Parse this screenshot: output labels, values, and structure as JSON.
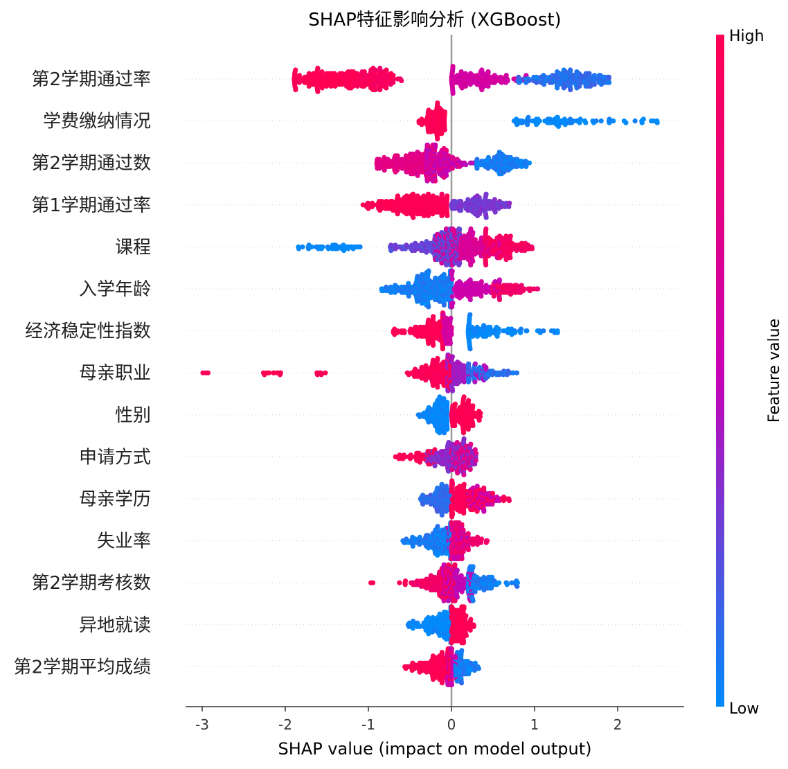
{
  "chart_data": {
    "type": "scatter",
    "subtype": "shap-beeswarm",
    "title": "SHAP特征影响分析 (XGBoost)",
    "xlabel": "SHAP value (impact on model output)",
    "xlim": [
      -3.2,
      2.8
    ],
    "xticks": [
      -3,
      -2,
      -1,
      0,
      1,
      2
    ],
    "colorbar": {
      "label": "Feature value",
      "high_label": "High",
      "low_label": "Low",
      "high_color": "#ff0052",
      "mid_color": "#c800b4",
      "low_color": "#008bfb"
    },
    "features": [
      {
        "name": "第2学期通过率",
        "segments": [
          {
            "from": -1.9,
            "to": -0.7,
            "v": 1.0,
            "n": 240,
            "peak": -1.4
          },
          {
            "from": -1.1,
            "to": -0.6,
            "v": 0.92,
            "n": 90,
            "peak": -0.9
          },
          {
            "from": 0.0,
            "to": 0.9,
            "v": 0.6,
            "n": 150,
            "peak": 0.3
          },
          {
            "from": 0.8,
            "to": 1.9,
            "v": 0.1,
            "n": 200,
            "peak": 1.5
          }
        ]
      },
      {
        "name": "学费缴纳情况",
        "segments": [
          {
            "from": -0.42,
            "to": -0.08,
            "v": 1.0,
            "n": 120,
            "peak": -0.2
          },
          {
            "from": 0.75,
            "to": 2.5,
            "v": 0.0,
            "n": 90,
            "peak": 1.3
          }
        ]
      },
      {
        "name": "第2学期通过数",
        "segments": [
          {
            "from": -0.9,
            "to": 0.1,
            "v": 0.75,
            "n": 260,
            "peak": -0.45
          },
          {
            "from": -0.3,
            "to": 0.3,
            "v": 0.5,
            "n": 120,
            "peak": -0.15
          },
          {
            "from": 0.3,
            "to": 0.95,
            "v": 0.05,
            "n": 130,
            "peak": 0.6
          }
        ]
      },
      {
        "name": "第1学期通过率",
        "segments": [
          {
            "from": -1.1,
            "to": -0.05,
            "v": 1.0,
            "n": 280,
            "peak": -0.35
          },
          {
            "from": 0.0,
            "to": 0.7,
            "v": 0.3,
            "n": 150,
            "peak": 0.35
          }
        ]
      },
      {
        "name": "课程",
        "segments": [
          {
            "from": -1.85,
            "to": -0.95,
            "v": 0.0,
            "n": 40,
            "peak": -1.4
          },
          {
            "from": -0.75,
            "to": 0.1,
            "v": 0.25,
            "n": 220,
            "peak": -0.1
          },
          {
            "from": -0.2,
            "to": 0.6,
            "v": 0.65,
            "n": 240,
            "peak": 0.15
          },
          {
            "from": 0.4,
            "to": 1.0,
            "v": 0.92,
            "n": 140,
            "peak": 0.55
          }
        ]
      },
      {
        "name": "入学年龄",
        "segments": [
          {
            "from": -0.85,
            "to": 0.0,
            "v": 0.05,
            "n": 320,
            "peak": -0.2
          },
          {
            "from": 0.0,
            "to": 0.6,
            "v": 0.55,
            "n": 130,
            "peak": 0.2
          },
          {
            "from": 0.5,
            "to": 1.05,
            "v": 0.88,
            "n": 70,
            "peak": 0.65
          }
        ]
      },
      {
        "name": "经济稳定性指数",
        "segments": [
          {
            "from": -0.7,
            "to": -0.1,
            "v": 1.0,
            "n": 160,
            "peak": -0.2
          },
          {
            "from": -0.15,
            "to": 0.0,
            "v": 0.6,
            "n": 60,
            "peak": -0.05
          },
          {
            "from": 0.2,
            "to": 1.3,
            "v": 0.0,
            "n": 110,
            "peak": 0.35
          }
        ]
      },
      {
        "name": "母亲职业",
        "segments": [
          {
            "from": -3.0,
            "to": -2.9,
            "v": 1.0,
            "n": 3,
            "peak": -2.95
          },
          {
            "from": -2.45,
            "to": -2.05,
            "v": 1.0,
            "n": 10,
            "peak": -2.2
          },
          {
            "from": -1.7,
            "to": -1.5,
            "v": 1.0,
            "n": 6,
            "peak": -1.6
          },
          {
            "from": -0.55,
            "to": 0.0,
            "v": 0.98,
            "n": 170,
            "peak": -0.15
          },
          {
            "from": -0.05,
            "to": 0.45,
            "v": 0.4,
            "n": 110,
            "peak": 0.05
          },
          {
            "from": 0.2,
            "to": 0.8,
            "v": 0.1,
            "n": 70,
            "peak": 0.35
          }
        ]
      },
      {
        "name": "性别",
        "segments": [
          {
            "from": -0.4,
            "to": -0.05,
            "v": 0.0,
            "n": 150,
            "peak": -0.15
          },
          {
            "from": 0.0,
            "to": 0.35,
            "v": 1.0,
            "n": 140,
            "peak": 0.15
          }
        ]
      },
      {
        "name": "申请方式",
        "segments": [
          {
            "from": -0.7,
            "to": -0.2,
            "v": 1.0,
            "n": 50,
            "peak": -0.35
          },
          {
            "from": -0.3,
            "to": 0.3,
            "v": 0.35,
            "n": 160,
            "peak": 0.0
          },
          {
            "from": 0.0,
            "to": 0.3,
            "v": 0.72,
            "n": 80,
            "peak": 0.12
          }
        ]
      },
      {
        "name": "母亲学历",
        "segments": [
          {
            "from": -0.4,
            "to": 0.0,
            "v": 0.12,
            "n": 130,
            "peak": -0.12
          },
          {
            "from": 0.0,
            "to": 0.7,
            "v": 0.98,
            "n": 180,
            "peak": 0.15
          },
          {
            "from": 0.2,
            "to": 0.6,
            "v": 0.55,
            "n": 60,
            "peak": 0.35
          }
        ]
      },
      {
        "name": "失业率",
        "segments": [
          {
            "from": -0.6,
            "to": 0.0,
            "v": 0.05,
            "n": 190,
            "peak": -0.1
          },
          {
            "from": 0.0,
            "to": 0.47,
            "v": 0.85,
            "n": 130,
            "peak": 0.1
          },
          {
            "from": -0.05,
            "to": 0.2,
            "v": 0.5,
            "n": 60,
            "peak": 0.05
          }
        ]
      },
      {
        "name": "第2学期考核数",
        "segments": [
          {
            "from": -1.0,
            "to": -0.55,
            "v": 1.0,
            "n": 6,
            "peak": -0.6
          },
          {
            "from": -0.5,
            "to": 0.05,
            "v": 0.9,
            "n": 170,
            "peak": -0.1
          },
          {
            "from": -0.1,
            "to": 0.3,
            "v": 0.5,
            "n": 110,
            "peak": 0.05
          },
          {
            "from": 0.2,
            "to": 0.82,
            "v": 0.05,
            "n": 110,
            "peak": 0.35
          }
        ]
      },
      {
        "name": "异地就读",
        "segments": [
          {
            "from": -0.55,
            "to": 0.0,
            "v": 0.0,
            "n": 170,
            "peak": -0.1
          },
          {
            "from": 0.0,
            "to": 0.28,
            "v": 1.0,
            "n": 150,
            "peak": 0.1
          }
        ]
      },
      {
        "name": "第2学期平均成绩",
        "segments": [
          {
            "from": -0.58,
            "to": 0.0,
            "v": 1.0,
            "n": 200,
            "peak": -0.1
          },
          {
            "from": -0.05,
            "to": 0.1,
            "v": 0.55,
            "n": 60,
            "peak": 0.0
          },
          {
            "from": 0.05,
            "to": 0.33,
            "v": 0.05,
            "n": 80,
            "peak": 0.12
          }
        ]
      }
    ]
  }
}
